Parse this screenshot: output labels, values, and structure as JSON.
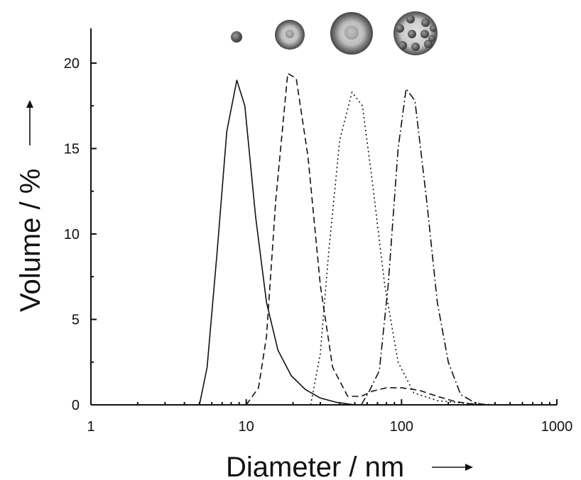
{
  "chart_data": {
    "type": "line",
    "xlabel": "Diameter / nm",
    "ylabel": "Volume / %",
    "xscale": "log",
    "xlim": [
      1,
      1000
    ],
    "ylim": [
      0,
      22
    ],
    "xticks": [
      {
        "value": 1,
        "label": "1"
      },
      {
        "value": 10,
        "label": "10"
      },
      {
        "value": 100,
        "label": "100"
      },
      {
        "value": 1000,
        "label": "1000"
      }
    ],
    "yticks": [
      {
        "value": 0,
        "label": "0"
      },
      {
        "value": 5,
        "label": "5"
      },
      {
        "value": 10,
        "label": "10"
      },
      {
        "value": 15,
        "label": "15"
      },
      {
        "value": 20,
        "label": "20"
      }
    ],
    "grid": false,
    "legend": "none",
    "series": [
      {
        "style": "solid",
        "points": [
          [
            5.0,
            0
          ],
          [
            5.6,
            2.2
          ],
          [
            6.5,
            9.0
          ],
          [
            7.5,
            16.0
          ],
          [
            8.7,
            19.0
          ],
          [
            9.8,
            17.5
          ],
          [
            11.5,
            11.0
          ],
          [
            13.5,
            6.0
          ],
          [
            16.0,
            3.2
          ],
          [
            19.5,
            1.7
          ],
          [
            24.0,
            0.9
          ],
          [
            30.0,
            0.4
          ],
          [
            38.0,
            0.15
          ],
          [
            50.0,
            0
          ]
        ]
      },
      {
        "style": "dashed",
        "points": [
          [
            10.0,
            0
          ],
          [
            12.0,
            1.0
          ],
          [
            13.5,
            4.0
          ],
          [
            15.5,
            12.0
          ],
          [
            18.5,
            19.4
          ],
          [
            21.0,
            19.1
          ],
          [
            25.0,
            14.5
          ],
          [
            30.0,
            7.0
          ],
          [
            36.0,
            2.2
          ],
          [
            45.0,
            0.5
          ],
          [
            55.0,
            0.5
          ],
          [
            65.0,
            0.8
          ],
          [
            80.0,
            1.0
          ],
          [
            100.0,
            1.0
          ],
          [
            130.0,
            0.85
          ],
          [
            170.0,
            0.5
          ],
          [
            220.0,
            0.2
          ],
          [
            280.0,
            0.05
          ],
          [
            350.0,
            0
          ]
        ]
      },
      {
        "style": "dotted",
        "points": [
          [
            26.0,
            0
          ],
          [
            30.0,
            3.0
          ],
          [
            34.0,
            9.0
          ],
          [
            40.0,
            15.5
          ],
          [
            48.0,
            18.3
          ],
          [
            56.0,
            17.5
          ],
          [
            65.0,
            13.0
          ],
          [
            78.0,
            7.0
          ],
          [
            95.0,
            2.5
          ],
          [
            120.0,
            0.7
          ],
          [
            170.0,
            0.25
          ],
          [
            250.0,
            0.1
          ],
          [
            400.0,
            0
          ]
        ]
      },
      {
        "style": "dashdot",
        "points": [
          [
            55.0,
            0
          ],
          [
            62.0,
            0.8
          ],
          [
            72.0,
            2.0
          ],
          [
            82.0,
            7.0
          ],
          [
            95.0,
            15.0
          ],
          [
            107.0,
            18.5
          ],
          [
            122.0,
            17.8
          ],
          [
            145.0,
            12.0
          ],
          [
            170.0,
            6.0
          ],
          [
            200.0,
            2.5
          ],
          [
            240.0,
            0.6
          ],
          [
            300.0,
            0.1
          ],
          [
            350.0,
            0
          ]
        ]
      }
    ]
  },
  "inset_icons": [
    {
      "name": "single-particle-icon"
    },
    {
      "name": "small-coated-sphere-icon"
    },
    {
      "name": "large-coated-sphere-icon"
    },
    {
      "name": "particle-cluster-sphere-icon"
    }
  ]
}
